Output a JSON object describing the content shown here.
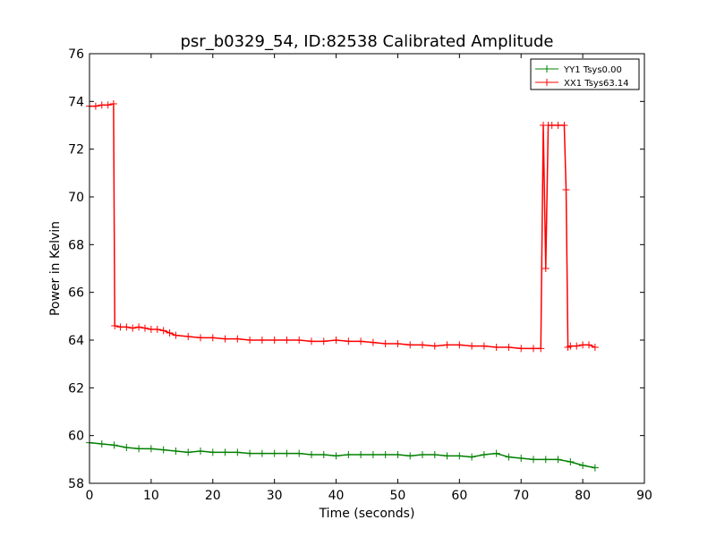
{
  "chart_data": {
    "type": "line",
    "title": "psr_b0329_54, ID:82538 Calibrated Amplitude",
    "xlabel": "Time (seconds)",
    "ylabel": "Power in Kelvin",
    "xlim": [
      0,
      90
    ],
    "ylim": [
      58,
      76
    ],
    "xticks": [
      0,
      10,
      20,
      30,
      40,
      50,
      60,
      70,
      80,
      90
    ],
    "yticks": [
      58,
      60,
      62,
      64,
      66,
      68,
      70,
      72,
      74,
      76
    ],
    "grid": false,
    "legend_position": "top-right",
    "marker": "+",
    "series": [
      {
        "name": "YY1 Tsys0.00",
        "color": "#008000",
        "x": [
          0,
          2,
          4,
          6,
          8,
          10,
          12,
          14,
          16,
          18,
          20,
          22,
          24,
          26,
          28,
          30,
          32,
          34,
          36,
          38,
          40,
          42,
          44,
          46,
          48,
          50,
          52,
          54,
          56,
          58,
          60,
          62,
          64,
          66,
          68,
          70,
          72,
          74,
          76,
          78,
          80,
          82
        ],
        "y": [
          59.7,
          59.65,
          59.6,
          59.5,
          59.45,
          59.45,
          59.4,
          59.35,
          59.3,
          59.35,
          59.3,
          59.3,
          59.3,
          59.25,
          59.25,
          59.25,
          59.25,
          59.25,
          59.2,
          59.2,
          59.15,
          59.2,
          59.2,
          59.2,
          59.2,
          59.2,
          59.15,
          59.2,
          59.2,
          59.15,
          59.15,
          59.1,
          59.2,
          59.25,
          59.1,
          59.05,
          59.0,
          59.0,
          59.0,
          58.9,
          58.75,
          58.65
        ]
      },
      {
        "name": "XX1 Tsys63.14",
        "color": "#ff0000",
        "x": [
          0,
          1,
          2,
          3,
          3.9,
          4.1,
          5,
          6,
          7,
          8,
          9,
          10,
          11,
          12,
          13,
          14,
          16,
          18,
          20,
          22,
          24,
          26,
          28,
          30,
          32,
          34,
          36,
          38,
          40,
          42,
          44,
          46,
          48,
          50,
          52,
          54,
          56,
          58,
          60,
          62,
          64,
          66,
          68,
          70,
          72,
          73.2,
          73.6,
          74,
          74.4,
          75,
          76,
          77,
          77.3,
          77.6,
          78,
          79,
          80,
          81,
          82
        ],
        "y": [
          73.8,
          73.8,
          73.85,
          73.85,
          73.9,
          64.6,
          64.55,
          64.55,
          64.5,
          64.55,
          64.5,
          64.45,
          64.45,
          64.4,
          64.3,
          64.2,
          64.15,
          64.1,
          64.1,
          64.05,
          64.05,
          64.0,
          64.0,
          64.0,
          64.0,
          64.0,
          63.95,
          63.95,
          64.0,
          63.95,
          63.95,
          63.9,
          63.85,
          63.85,
          63.8,
          63.8,
          63.75,
          63.8,
          63.8,
          63.75,
          63.75,
          63.7,
          63.7,
          63.65,
          63.65,
          63.65,
          73.0,
          67.0,
          73.0,
          73.0,
          73.0,
          73.0,
          70.3,
          63.7,
          63.75,
          63.75,
          63.8,
          63.8,
          63.7
        ]
      }
    ]
  }
}
